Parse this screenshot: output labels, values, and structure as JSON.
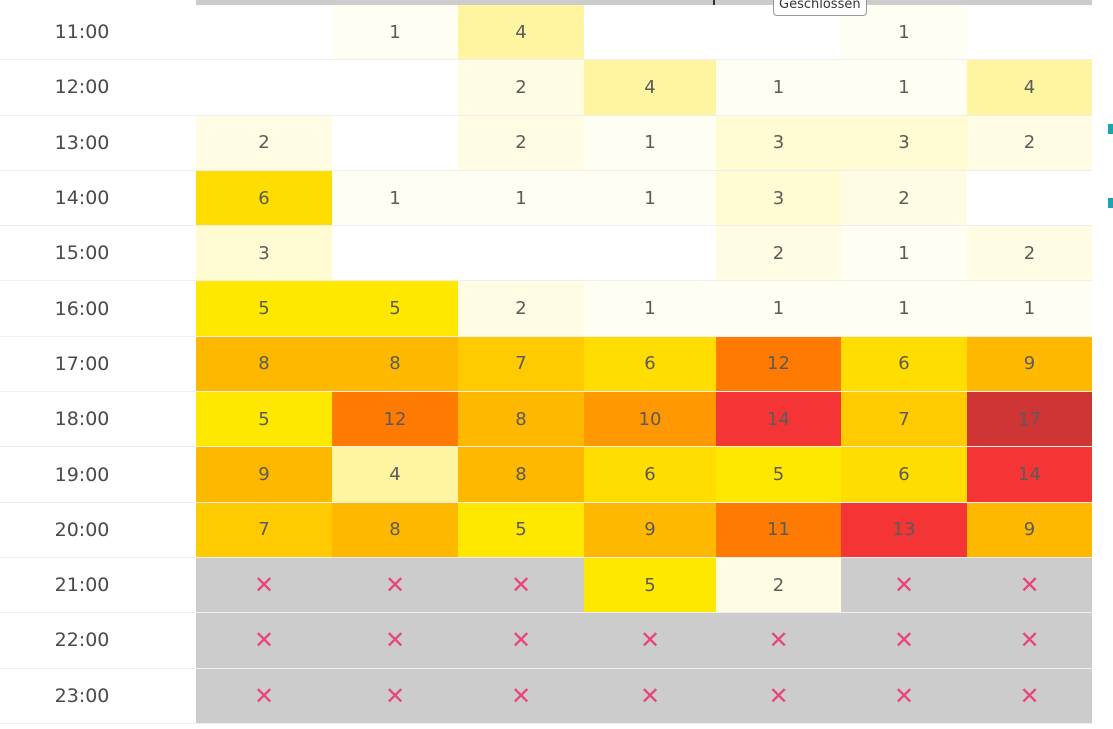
{
  "tooltip": {
    "text": "Geschlossen"
  },
  "icons": {
    "closed_icon": "cross-mark-icon"
  },
  "colors": {
    "closed_bg": "#cccccc",
    "closed_mark": "#e8457a",
    "scale": [
      "#fffef2",
      "#fffce3",
      "#fffbd2",
      "#fff5a0",
      "#ffe800",
      "#ffdd00",
      "#ffca00",
      "#ffb800",
      "#ff9700",
      "#ff7a00",
      "#f53535",
      "#d03535"
    ]
  },
  "heatmap": {
    "rows": [
      {
        "time": "11:00",
        "cells": [
          null,
          1,
          4,
          null,
          null,
          1,
          null
        ]
      },
      {
        "time": "12:00",
        "cells": [
          null,
          null,
          2,
          4,
          1,
          1,
          4
        ]
      },
      {
        "time": "13:00",
        "cells": [
          2,
          null,
          2,
          1,
          3,
          3,
          2
        ]
      },
      {
        "time": "14:00",
        "cells": [
          6,
          1,
          1,
          1,
          3,
          2,
          null
        ]
      },
      {
        "time": "15:00",
        "cells": [
          3,
          null,
          null,
          null,
          2,
          1,
          2
        ]
      },
      {
        "time": "16:00",
        "cells": [
          5,
          5,
          2,
          1,
          1,
          1,
          1
        ]
      },
      {
        "time": "17:00",
        "cells": [
          8,
          8,
          7,
          6,
          12,
          6,
          9
        ]
      },
      {
        "time": "18:00",
        "cells": [
          5,
          12,
          8,
          10,
          14,
          7,
          17
        ]
      },
      {
        "time": "19:00",
        "cells": [
          9,
          4,
          8,
          6,
          5,
          6,
          14
        ]
      },
      {
        "time": "20:00",
        "cells": [
          7,
          8,
          5,
          9,
          11,
          13,
          9
        ]
      },
      {
        "time": "21:00",
        "cells": [
          "closed",
          "closed",
          "closed",
          5,
          2,
          "closed",
          "closed"
        ]
      },
      {
        "time": "22:00",
        "cells": [
          "closed",
          "closed",
          "closed",
          "closed",
          "closed",
          "closed",
          "closed"
        ]
      },
      {
        "time": "23:00",
        "cells": [
          "closed",
          "closed",
          "closed",
          "closed",
          "closed",
          "closed",
          "closed"
        ]
      }
    ]
  }
}
